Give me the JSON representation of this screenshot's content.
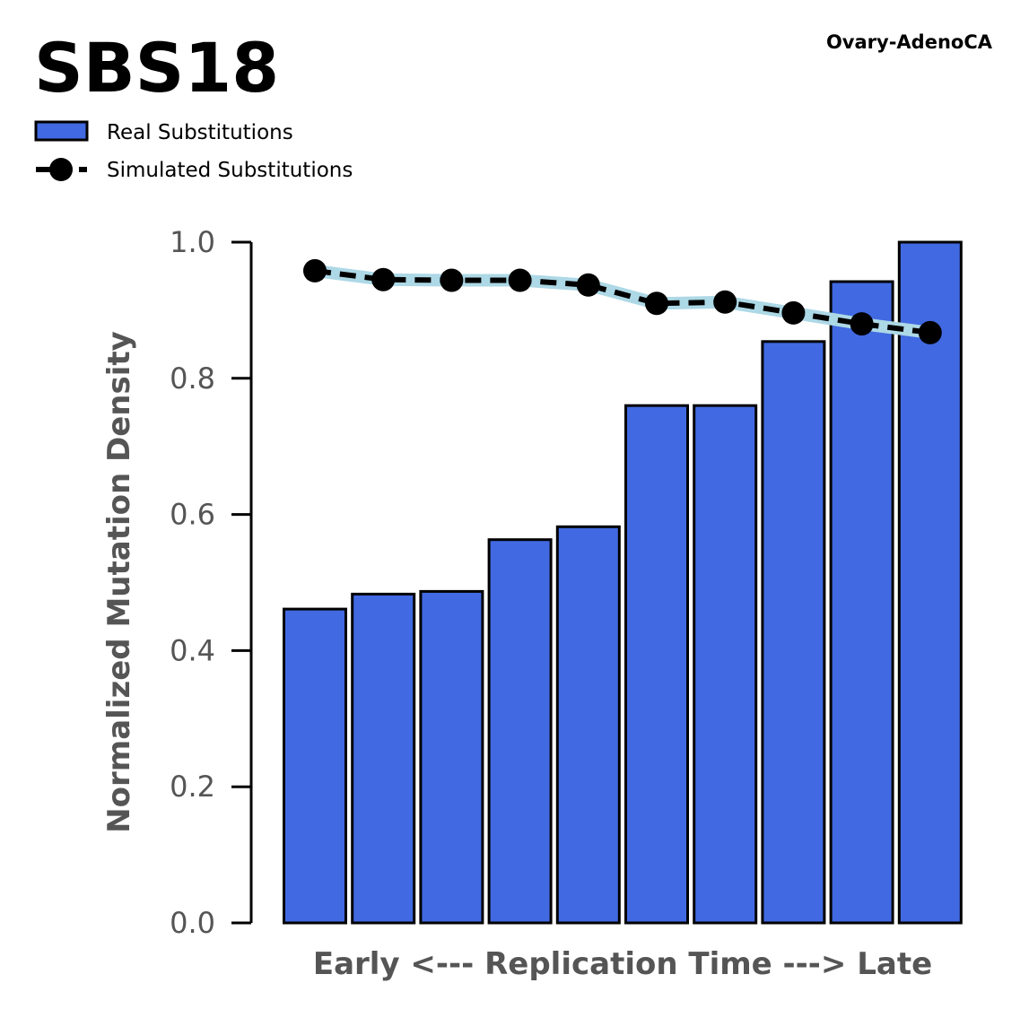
{
  "chart_data": {
    "type": "bar",
    "title": "SBS18",
    "subtitle": "Ovary-AdenoCA",
    "xlabel": "Early <--- Replication Time ---> Late",
    "ylabel": "Normalized Mutation Density",
    "ylim": [
      0,
      1.0
    ],
    "yticks": [
      "0.0",
      "0.2",
      "0.4",
      "0.6",
      "0.8",
      "1.0"
    ],
    "grid": false,
    "legend_position": "top-left",
    "series": [
      {
        "name": "Real Substitutions",
        "kind": "bar",
        "color": "#4169E1",
        "values": [
          0.461,
          0.483,
          0.487,
          0.563,
          0.582,
          0.76,
          0.76,
          0.854,
          0.942,
          1.0
        ]
      },
      {
        "name": "Simulated Substitutions",
        "kind": "line",
        "color": "#000000",
        "band_color": "#ADD8E6",
        "marker": "circle",
        "linestyle": "dashed",
        "values": [
          0.958,
          0.945,
          0.944,
          0.944,
          0.937,
          0.91,
          0.912,
          0.896,
          0.88,
          0.867
        ]
      }
    ]
  }
}
